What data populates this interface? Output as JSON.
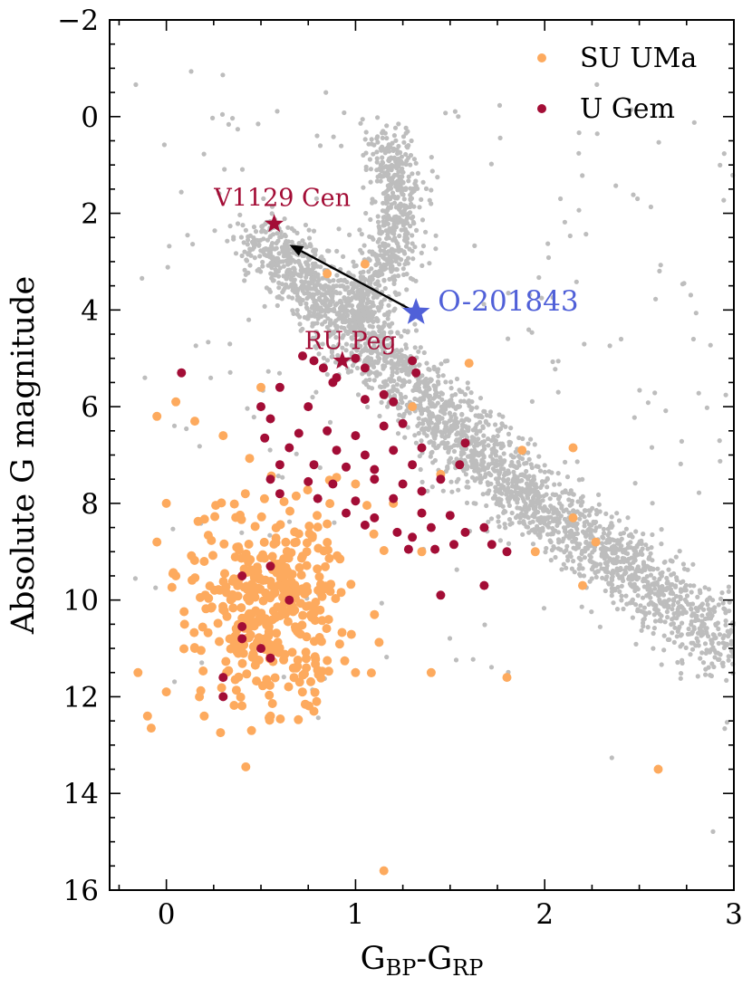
{
  "chart_data": {
    "type": "scatter",
    "title": "",
    "xlabel": "G_BP-G_RP",
    "xlabel_main_1": "G",
    "xlabel_sub_1": "BP",
    "xlabel_sep": "-",
    "xlabel_main_2": "G",
    "xlabel_sub_2": "RP",
    "ylabel": "Absolute G magnitude",
    "xlim": [
      -0.3,
      3.0
    ],
    "ylim": [
      16,
      -2
    ],
    "x_ticks": [
      0,
      1,
      2,
      3
    ],
    "x_tick_labels": [
      "0",
      "1",
      "2",
      "3"
    ],
    "y_ticks": [
      -2,
      0,
      2,
      4,
      6,
      8,
      10,
      12,
      14,
      16
    ],
    "y_tick_labels": [
      "−2",
      "0",
      "2",
      "4",
      "6",
      "8",
      "10",
      "12",
      "14",
      "16"
    ],
    "legend_position": "top-right",
    "legend": [
      {
        "name": "SU UMa",
        "color": "#fdaa5e"
      },
      {
        "name": "U Gem",
        "color": "#a30d36"
      }
    ],
    "colors": {
      "background_stars": "#bdbdbd",
      "su_uma": "#fdaa5e",
      "u_gem": "#a30d36",
      "target": "#5060d8",
      "arrow": "#000000"
    },
    "background_sequences": [
      {
        "name": "main sequence",
        "points": [
          [
            0.5,
            2.5
          ],
          [
            0.8,
            3.6
          ],
          [
            1.2,
            5.2
          ],
          [
            1.6,
            6.8
          ],
          [
            2.0,
            8.2
          ],
          [
            2.5,
            9.5
          ],
          [
            3.0,
            11.2
          ]
        ]
      },
      {
        "name": "giant branch",
        "points": [
          [
            1.15,
            0.5
          ],
          [
            1.25,
            1.5
          ],
          [
            1.2,
            2.5
          ],
          [
            1.1,
            3.5
          ],
          [
            1.0,
            4.3
          ]
        ]
      }
    ],
    "series": [
      {
        "name": "SU UMa",
        "color": "#fdaa5e",
        "points": [
          [
            0.05,
            5.9
          ],
          [
            -0.05,
            6.2
          ],
          [
            0.15,
            6.3
          ],
          [
            0.3,
            6.6
          ],
          [
            0.5,
            5.6
          ],
          [
            1.6,
            5.1
          ],
          [
            1.88,
            6.9
          ],
          [
            2.15,
            6.85
          ],
          [
            1.45,
            7.4
          ],
          [
            1.35,
            8.2
          ],
          [
            2.15,
            8.3
          ],
          [
            2.27,
            8.8
          ],
          [
            1.95,
            9.0
          ],
          [
            2.2,
            9.7
          ],
          [
            1.8,
            11.6
          ],
          [
            2.6,
            13.5
          ],
          [
            1.15,
            15.6
          ],
          [
            1.05,
            3.05
          ],
          [
            0.85,
            3.25
          ],
          [
            1.3,
            6.0
          ],
          [
            0.0,
            8.0
          ],
          [
            -0.05,
            8.8
          ],
          [
            0.05,
            9.5
          ],
          [
            0.2,
            9.2
          ],
          [
            0.15,
            11.0
          ],
          [
            0.0,
            11.9
          ],
          [
            -0.15,
            11.5
          ],
          [
            -0.1,
            12.4
          ],
          [
            -0.08,
            12.65
          ],
          [
            0.2,
            12.4
          ],
          [
            0.45,
            12.7
          ],
          [
            0.42,
            13.45
          ],
          [
            0.55,
            12.4
          ],
          [
            0.78,
            12.3
          ],
          [
            1.0,
            11.5
          ],
          [
            1.4,
            11.5
          ],
          [
            1.1,
            10.3
          ],
          [
            1.35,
            9.0
          ],
          [
            1.2,
            8.0
          ],
          [
            1.0,
            7.6
          ]
        ],
        "cluster": {
          "center": [
            0.55,
            10.1
          ],
          "sx": 0.2,
          "sy": 1.05,
          "n": 390
        }
      },
      {
        "name": "U Gem",
        "color": "#a30d36",
        "points": [
          [
            0.08,
            5.3
          ],
          [
            0.72,
            4.95
          ],
          [
            0.78,
            5.05
          ],
          [
            0.83,
            5.2
          ],
          [
            0.9,
            5.4
          ],
          [
            1.0,
            5.0
          ],
          [
            1.05,
            5.2
          ],
          [
            1.3,
            5.05
          ],
          [
            1.32,
            5.3
          ],
          [
            0.6,
            5.6
          ],
          [
            0.88,
            5.5
          ],
          [
            1.15,
            5.75
          ],
          [
            0.5,
            6.0
          ],
          [
            0.75,
            6.0
          ],
          [
            1.05,
            5.85
          ],
          [
            1.2,
            5.9
          ],
          [
            0.55,
            6.25
          ],
          [
            0.7,
            6.55
          ],
          [
            0.85,
            6.5
          ],
          [
            1.0,
            6.6
          ],
          [
            1.15,
            6.4
          ],
          [
            1.25,
            6.35
          ],
          [
            0.52,
            6.65
          ],
          [
            0.65,
            6.85
          ],
          [
            0.9,
            6.9
          ],
          [
            1.05,
            7.0
          ],
          [
            1.2,
            6.9
          ],
          [
            1.35,
            6.85
          ],
          [
            1.58,
            6.75
          ],
          [
            0.6,
            7.2
          ],
          [
            0.78,
            7.2
          ],
          [
            0.95,
            7.25
          ],
          [
            1.1,
            7.3
          ],
          [
            1.3,
            7.2
          ],
          [
            1.55,
            7.2
          ],
          [
            0.55,
            7.5
          ],
          [
            0.75,
            7.55
          ],
          [
            0.88,
            7.6
          ],
          [
            1.1,
            7.5
          ],
          [
            1.25,
            7.6
          ],
          [
            1.45,
            7.5
          ],
          [
            0.6,
            7.8
          ],
          [
            0.8,
            7.9
          ],
          [
            1.0,
            7.95
          ],
          [
            1.2,
            7.9
          ],
          [
            1.35,
            7.75
          ],
          [
            0.95,
            8.2
          ],
          [
            1.1,
            8.3
          ],
          [
            1.35,
            8.2
          ],
          [
            1.5,
            8.25
          ],
          [
            1.05,
            8.45
          ],
          [
            1.22,
            8.6
          ],
          [
            1.3,
            8.7
          ],
          [
            1.4,
            8.5
          ],
          [
            1.58,
            8.6
          ],
          [
            1.68,
            8.5
          ],
          [
            1.28,
            8.95
          ],
          [
            1.42,
            8.95
          ],
          [
            1.52,
            8.85
          ],
          [
            1.72,
            8.85
          ],
          [
            1.8,
            9.0
          ],
          [
            1.45,
            9.9
          ],
          [
            1.68,
            9.7
          ],
          [
            0.4,
            9.5
          ],
          [
            0.55,
            9.3
          ],
          [
            0.65,
            10.0
          ],
          [
            0.4,
            10.55
          ],
          [
            0.4,
            10.8
          ],
          [
            0.5,
            11.0
          ],
          [
            0.55,
            11.2
          ],
          [
            0.3,
            11.6
          ],
          [
            0.3,
            12.0
          ]
        ]
      }
    ],
    "special_points": [
      {
        "label": "V1129 Cen",
        "x": 0.57,
        "y": 2.22,
        "color": "#a30d36",
        "marker": "star"
      },
      {
        "label": "RU Peg",
        "x": 0.93,
        "y": 5.05,
        "color": "#a30d36",
        "marker": "star"
      },
      {
        "label": "O-201843",
        "x": 1.32,
        "y": 4.05,
        "color": "#5060d8",
        "marker": "star"
      }
    ],
    "annotation_arrow": {
      "from": [
        1.32,
        4.05
      ],
      "to": [
        0.65,
        2.65
      ],
      "color": "#000000"
    }
  }
}
